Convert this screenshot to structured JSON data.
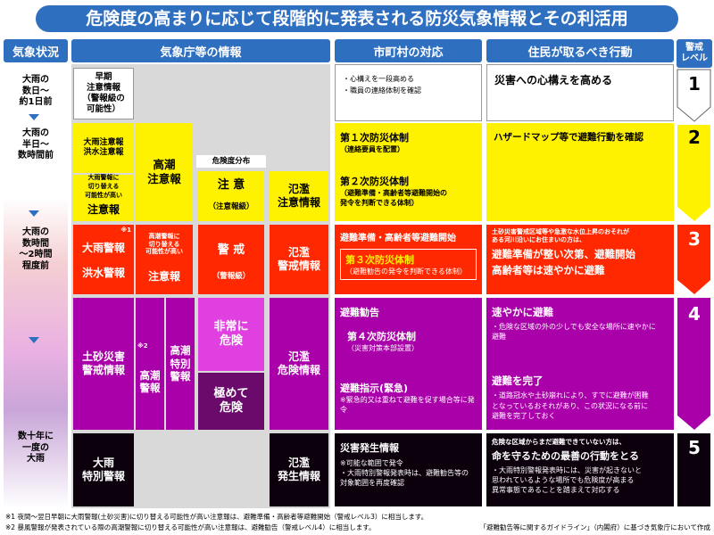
{
  "title": "危険度の高まりに応じて段階的に発表される防災気象情報とその利活用",
  "headers": {
    "kisho_jokyo": "気象状況",
    "kishocho": "気象庁等の情報",
    "shichoson": "市町村の対応",
    "jumin": "住民が取るべき行動",
    "keikai_level": "警戒\nレベル"
  },
  "stages": [
    "大雨の\n数日～\n約1日前",
    "大雨の\n半日～\n数時間前",
    "大雨の\n数時間\n～2時間\n程度前",
    "数十年に\n一度の\n大雨"
  ],
  "jma": {
    "soki": "早期\n注意情報\n（警報級の\n可能性）",
    "ooame_chuiho": "大雨注意報\n洪水注意報",
    "ooame_keiho_possible": "大雨警報に\n切り替える\n可能性が高い",
    "chuiho": "注意報",
    "takashio_chuiho": "高潮\n注意報",
    "kikendo_bunpu": "危険度分布",
    "chui": "注 意",
    "chui_sub": "（注意報級）",
    "hanran_chui": "氾濫\n注意情報",
    "note1": "※1",
    "ooame_keiho": "大雨警報",
    "kozui_keiho": "洪水警報",
    "takashio_keiho_possible": "高潮警報に\n切り替える\n可能性が高い",
    "chuiho2": "注意報",
    "keikai": "警 戒",
    "keikai_sub": "（警報級）",
    "hanran_keikai": "氾濫\n警戒情報",
    "dosha": "土砂災害\n警戒情報",
    "note2": "※2",
    "takashio_keiho": "高潮\n警報",
    "takashio_tokubetsu": "高潮\n特別\n警報",
    "hijo_kiken": "非常に\n危険",
    "kiwamete_kiken": "極めて\n危険",
    "hanran_kiken": "氾濫\n危険情報",
    "ooame_tokubetsu": "大雨\n特別警報",
    "hanran_hassei": "氾濫\n発生情報"
  },
  "city": {
    "l1_bullets": [
      "心構えを一段高める",
      "職員の連絡体制を確認"
    ],
    "l2_title1": "第１次防災体制",
    "l2_sub1": "（連絡要員を配置）",
    "l2_title2": "第２次防災体制",
    "l2_sub2": "（避難準備・高齢者等避難開始の\n発令を判断できる体制）",
    "l3_title": "避難準備・高齢者等避難開始",
    "l3_box_title": "第３次防災体制",
    "l3_box_sub": "（避難勧告の発令を判断できる体制）",
    "l4_title": "避難勧告",
    "l4_box_title": "第４次防災体制",
    "l4_box_sub": "（災害対策本部設置）",
    "l4_shiji": "避難指示(緊急)",
    "l4_shiji_note": "※緊急的又は重ねて避難を促す場合等に発令",
    "l5_title": "災害発生情報",
    "l5_bullets": [
      "※可能な範囲で発令",
      "大雨特別警報発表時は、避難勧告等の\n対象範囲を再度確認"
    ]
  },
  "residents": {
    "l1": "災害への心構えを高める",
    "l2": "ハザードマップ等で避難行動を確認",
    "l3_small": "土砂災害警戒区域等や急激な水位上昇のおそれが\nある河川沿いにお住まいの方は、",
    "l3_main": "避難準備が整い次第、避難開始\n高齢者等は速やかに避難",
    "l4_title": "速やかに避難",
    "l4_bullet": "危険な区域の外の少しでも安全な場所に速やかに\n避難",
    "l4_title2": "避難を完了",
    "l4_bullet2": "道路冠水や土砂崩れにより、すでに避難が困難\nとなっているおそれがあり、この状況になる前に\n避難を完了しておく",
    "l5_small": "危険な区域からまだ避難できていない方は、",
    "l5_main": "命を守るための最善の行動をとる",
    "l5_bullet": "大雨特別警報発表時には、災害が起きないと\n思われているような場所でも危険度が高まる\n異常事態であることを踏まえて対応する"
  },
  "levels": [
    "1",
    "2",
    "3",
    "4",
    "5"
  ],
  "footnotes": [
    "※1 夜間～翌日早朝に大雨警報(土砂災害)に切り替える可能性が高い注意報は、避難準備・高齢者等避難開始（警戒レベル3）に相当します。",
    "※2 暴風警報が発表されている際の高潮警報に切り替える可能性が高い注意報は、避難勧告（警戒レベル4）に相当します。"
  ],
  "credit": "「避難勧告等に関するガイドライン」（内閣府）に基づき気象庁において作成",
  "colors": {
    "blue": "#2f6fc0",
    "yellow": "#fff200",
    "red": "#ff2800",
    "purple": "#aa00aa",
    "black": "#0c000c"
  }
}
